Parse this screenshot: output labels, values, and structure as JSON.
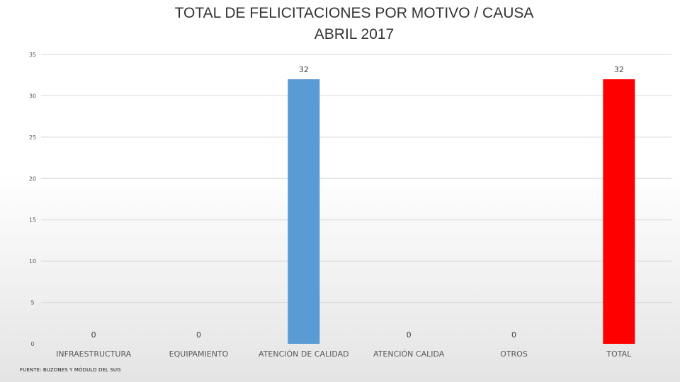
{
  "chart_data": {
    "type": "bar",
    "title": "TOTAL DE FELICITACIONES POR MOTIVO / CAUSA",
    "subtitle": "ABRIL 2017",
    "categories": [
      "INFRAESTRUCTURA",
      "EQUIPAMIENTO",
      "ATENCIÓN DE CALIDAD",
      "ATENCIÓN CALIDA",
      "OTROS",
      "TOTAL"
    ],
    "values": [
      0,
      0,
      32,
      0,
      0,
      32
    ],
    "bar_colors": [
      "#5B9BD5",
      "#5B9BD5",
      "#5B9BD5",
      "#5B9BD5",
      "#5B9BD5",
      "#FF0000"
    ],
    "ylim": [
      0,
      35
    ],
    "yticks": [
      0,
      5,
      10,
      15,
      20,
      25,
      30,
      35
    ],
    "grid": true,
    "data_labels": true,
    "legend": "none"
  },
  "footer": {
    "source": "FUENTE: BUZONES Y MÓDULO DEL SUG"
  }
}
